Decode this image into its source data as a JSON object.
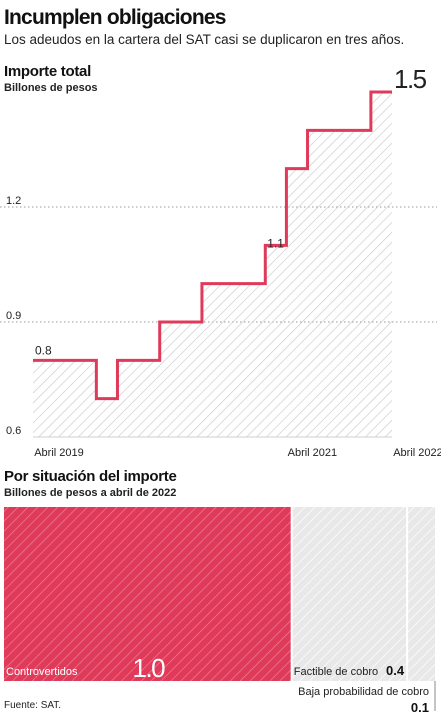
{
  "header": {
    "title": "Incumplen obligaciones",
    "subtitle": "Los adeudos en la cartera del SAT casi se duplicaron en tres años."
  },
  "colors": {
    "accent": "#e03a5a",
    "hatch": "#c9c9c9",
    "grid": "#999999"
  },
  "footer": {
    "source": "Fuente: SAT."
  },
  "chart_data": [
    {
      "type": "line",
      "title": "Importe total",
      "subtitle": "Billones de pesos",
      "xlabel": "",
      "ylabel": "",
      "ylim": [
        0.6,
        1.5
      ],
      "yticks": [
        "0.6",
        "0.9",
        "1.2"
      ],
      "xticks": [
        "Abril 2019",
        "Abril 2021",
        "Abril 2022"
      ],
      "grid": "dotted horizontal",
      "area_fill": "hatched",
      "x": [
        "Abril 2019",
        "",
        "",
        "",
        "",
        "",
        "",
        "",
        "",
        "",
        "",
        "",
        "Abril 2021",
        "",
        "",
        "",
        "",
        "Abril 2022"
      ],
      "values": [
        0.8,
        0.8,
        0.8,
        0.7,
        0.8,
        0.8,
        0.9,
        0.9,
        1.0,
        1.0,
        1.0,
        1.1,
        1.3,
        1.4,
        1.4,
        1.4,
        1.5,
        1.5
      ],
      "labels": [
        {
          "index": 0,
          "text": "0.8"
        },
        {
          "index": 11,
          "text": "1.1"
        },
        {
          "index": 17,
          "text": "1.5"
        }
      ]
    },
    {
      "type": "bar",
      "orientation": "horizontal-stacked",
      "title": "Por situación del importe",
      "subtitle": "Billones de pesos a abril de 2022",
      "categories": [
        "Controvertidos",
        "Factible de cobro",
        "Baja probabilidad de cobro"
      ],
      "values": [
        1.0,
        0.4,
        0.1
      ],
      "value_labels": [
        "1.0",
        "0.4",
        "0.1"
      ]
    }
  ]
}
